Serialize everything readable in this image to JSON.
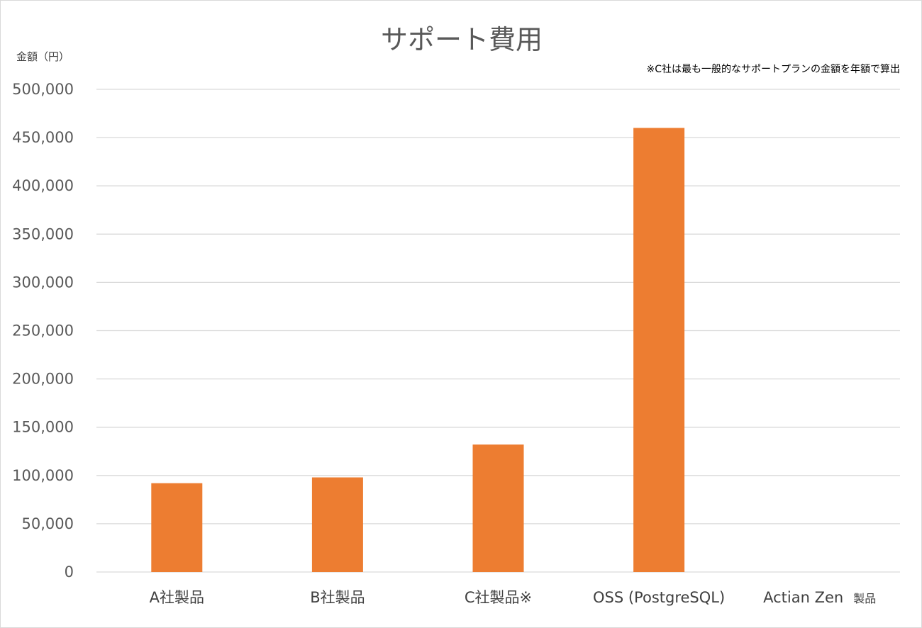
{
  "chart_data": {
    "type": "bar",
    "title": "サポート費用",
    "ylabel": "金額（円）",
    "xlabel": "",
    "note": "※C社は最も一般的なサポートプランの金額を年額で算出",
    "categories": [
      {
        "label": "A社製品",
        "suffix": ""
      },
      {
        "label": "B社製品",
        "suffix": ""
      },
      {
        "label": "C社製品※",
        "suffix": ""
      },
      {
        "label": "OSS (PostgreSQL)",
        "suffix": ""
      },
      {
        "label": "Actian Zen",
        "suffix": "製品"
      }
    ],
    "values": [
      92000,
      98000,
      132000,
      460000,
      0
    ],
    "ylim": [
      0,
      500000
    ],
    "yticks": [
      "0",
      "50,000",
      "100,000",
      "150,000",
      "200,000",
      "250,000",
      "300,000",
      "350,000",
      "400,000",
      "450,000",
      "500,000"
    ],
    "ytick_values": [
      0,
      50000,
      100000,
      150000,
      200000,
      250000,
      300000,
      350000,
      400000,
      450000,
      500000
    ],
    "grid": true,
    "legend": "none",
    "colors": {
      "bar": "#ed7d31",
      "grid": "#d9d9d9"
    }
  }
}
